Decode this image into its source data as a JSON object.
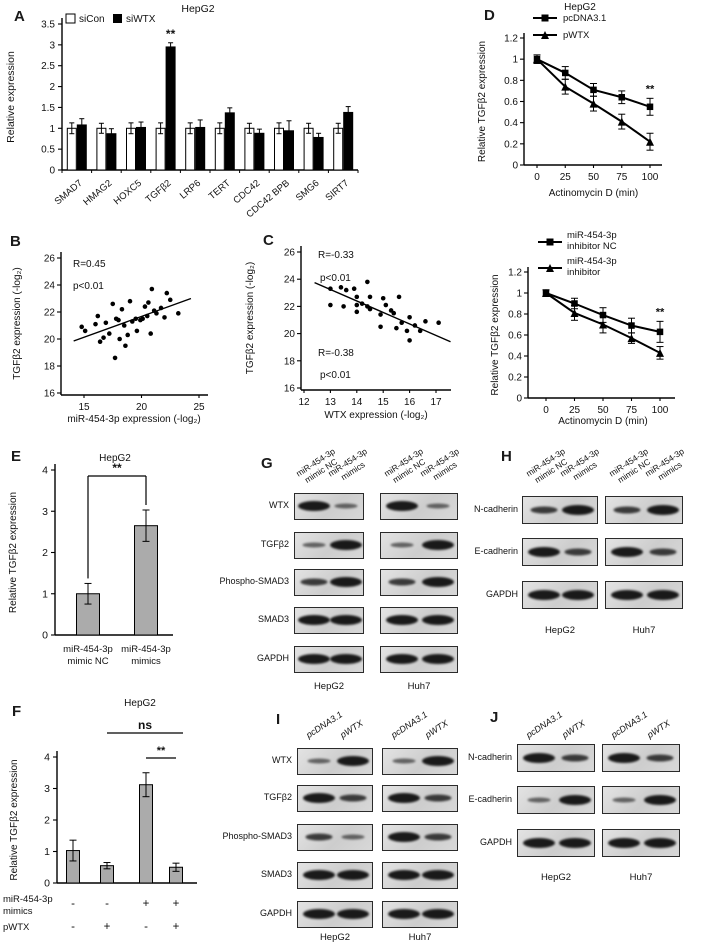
{
  "panels": {
    "a": {
      "letter": "A"
    },
    "b": {
      "letter": "B"
    },
    "c": {
      "letter": "C"
    },
    "d": {
      "letter": "D"
    },
    "e": {
      "letter": "E"
    },
    "f": {
      "letter": "F"
    },
    "g": {
      "letter": "G"
    },
    "h": {
      "letter": "H"
    },
    "i": {
      "letter": "I"
    },
    "j": {
      "letter": "J"
    }
  },
  "colors": {
    "bar_gray": "#ababab",
    "black": "#000000",
    "white": "#ffffff"
  },
  "chart_data": [
    {
      "id": "panel-a",
      "type": "grouped_bar",
      "title": "HepG2",
      "ylabel": "Relative expression",
      "ylim": [
        0,
        3.5
      ],
      "yticks": [
        0,
        0.5,
        1,
        1.5,
        2,
        2.5,
        3,
        3.5
      ],
      "categories": [
        "SMAD7",
        "HMAG2",
        "HOXC5",
        "TGFβ2",
        "LRP6",
        "TERT",
        "CDC42",
        "CDC42 BPB",
        "SMG6",
        "SIRT7"
      ],
      "series": [
        {
          "name": "siCon",
          "fill": "#ffffff",
          "values": [
            1.0,
            1.0,
            1.0,
            1.0,
            1.0,
            1.0,
            1.0,
            1.0,
            1.0,
            1.0
          ],
          "errors": [
            0.13,
            0.12,
            0.13,
            0.13,
            0.13,
            0.13,
            0.12,
            0.13,
            0.12,
            0.12
          ]
        },
        {
          "name": "siWTX",
          "fill": "#000000",
          "values": [
            1.08,
            0.87,
            1.02,
            2.95,
            1.02,
            1.37,
            0.88,
            0.94,
            0.78,
            1.38
          ],
          "errors": [
            0.15,
            0.12,
            0.13,
            0.1,
            0.18,
            0.12,
            0.1,
            0.24,
            0.1,
            0.14
          ]
        }
      ],
      "sig": [
        {
          "series": 1,
          "category": 3,
          "text": "**"
        }
      ]
    },
    {
      "id": "panel-d",
      "type": "line",
      "title": "HepG2",
      "xlabel": "Actinomycin D (min)",
      "ylabel": "Relative TGFβ2 expression",
      "ylim": [
        0,
        1.2
      ],
      "yticks": [
        0,
        0.2,
        0.4,
        0.6,
        0.8,
        1,
        1.2
      ],
      "x": [
        0,
        25,
        50,
        75,
        100
      ],
      "series": [
        {
          "name": [
            "pcDNA3.1"
          ],
          "marker": "square",
          "values": [
            1.0,
            0.87,
            0.71,
            0.64,
            0.55
          ],
          "errors": [
            0.04,
            0.06,
            0.06,
            0.06,
            0.08
          ]
        },
        {
          "name": [
            "pWTX"
          ],
          "marker": "triangle",
          "values": [
            1.0,
            0.74,
            0.58,
            0.41,
            0.22
          ],
          "errors": [
            0.04,
            0.07,
            0.07,
            0.07,
            0.08
          ]
        }
      ],
      "sig": {
        "series": 0,
        "text": "**"
      }
    },
    {
      "id": "panel-b",
      "type": "scatter",
      "xlabel": "miR-454-3p expression (-log₂)",
      "ylabel": "TGFβ2 expression (-log₂)",
      "xscale": [
        15,
        25
      ],
      "xticks": [
        15,
        20,
        25
      ],
      "yscale": [
        16,
        26
      ],
      "yticks": [
        16,
        18,
        20,
        22,
        24,
        26
      ],
      "annotations": [
        "R=0.45",
        "p<0.01"
      ],
      "trend": [
        [
          14.1,
          19.85
        ],
        [
          24.3,
          23.0
        ]
      ],
      "points": [
        [
          14.8,
          20.9
        ],
        [
          15.1,
          20.6
        ],
        [
          16.0,
          21.1
        ],
        [
          16.2,
          21.7
        ],
        [
          16.4,
          19.8
        ],
        [
          16.7,
          20.1
        ],
        [
          16.9,
          21.2
        ],
        [
          17.2,
          20.4
        ],
        [
          17.5,
          22.6
        ],
        [
          17.7,
          18.6
        ],
        [
          17.8,
          21.5
        ],
        [
          18.0,
          21.4
        ],
        [
          18.1,
          20.0
        ],
        [
          18.3,
          22.2
        ],
        [
          18.5,
          21.0
        ],
        [
          18.6,
          19.5
        ],
        [
          18.8,
          20.3
        ],
        [
          19.0,
          22.8
        ],
        [
          19.2,
          21.3
        ],
        [
          19.5,
          21.5
        ],
        [
          19.6,
          20.6
        ],
        [
          19.9,
          21.4
        ],
        [
          20.1,
          21.5
        ],
        [
          20.3,
          22.4
        ],
        [
          20.5,
          21.7
        ],
        [
          20.6,
          22.7
        ],
        [
          20.8,
          20.4
        ],
        [
          20.9,
          23.7
        ],
        [
          21.1,
          22.1
        ],
        [
          21.3,
          21.9
        ],
        [
          21.7,
          22.3
        ],
        [
          22.0,
          21.6
        ],
        [
          22.2,
          23.4
        ],
        [
          22.5,
          22.9
        ],
        [
          23.2,
          21.9
        ]
      ]
    },
    {
      "id": "panel-c",
      "type": "scatter",
      "xlabel": "WTX expression (-log₂)",
      "ylabel": "TGFβ2 expression (-log₂)",
      "xscale": [
        12,
        17
      ],
      "xticks": [
        12,
        13,
        14,
        15,
        16,
        17
      ],
      "yscale": [
        16,
        26
      ],
      "yticks": [
        16,
        18,
        20,
        22,
        24,
        26
      ],
      "annotations": [
        "R=-0.33",
        "p<0.01",
        "R=-0.38",
        "p<0.01"
      ],
      "trend": [
        [
          12.4,
          23.75
        ],
        [
          17.55,
          19.4
        ]
      ],
      "points": [
        [
          13.0,
          23.3
        ],
        [
          13.0,
          22.1
        ],
        [
          13.4,
          23.4
        ],
        [
          13.5,
          22.0
        ],
        [
          13.6,
          23.2
        ],
        [
          13.9,
          23.3
        ],
        [
          14.0,
          22.7
        ],
        [
          14.0,
          22.1
        ],
        [
          14.0,
          21.6
        ],
        [
          14.2,
          22.2
        ],
        [
          14.4,
          23.8
        ],
        [
          14.4,
          22.0
        ],
        [
          14.5,
          22.7
        ],
        [
          14.5,
          21.8
        ],
        [
          14.9,
          21.4
        ],
        [
          14.9,
          20.5
        ],
        [
          15.0,
          22.6
        ],
        [
          15.1,
          22.1
        ],
        [
          15.3,
          21.7
        ],
        [
          15.4,
          21.5
        ],
        [
          15.5,
          20.4
        ],
        [
          15.6,
          22.7
        ],
        [
          15.7,
          20.8
        ],
        [
          15.9,
          20.2
        ],
        [
          16.0,
          19.5
        ],
        [
          16.0,
          21.2
        ],
        [
          16.2,
          20.6
        ],
        [
          16.4,
          20.2
        ],
        [
          16.6,
          20.9
        ],
        [
          17.1,
          20.8
        ]
      ]
    },
    {
      "id": "panel-c2",
      "type": "line",
      "title": "",
      "xlabel": "Actinomycin D (min)",
      "ylabel": "Relative TGFβ2 expression",
      "ylim": [
        0,
        1.2
      ],
      "yticks": [
        0,
        0.2,
        0.4,
        0.6,
        0.8,
        1,
        1.2
      ],
      "x": [
        0,
        25,
        50,
        75,
        100
      ],
      "series": [
        {
          "name": [
            "miR-454-3p",
            "inhibitor NC"
          ],
          "marker": "square",
          "values": [
            1.0,
            0.9,
            0.79,
            0.69,
            0.63
          ],
          "errors": [
            0.03,
            0.05,
            0.07,
            0.07,
            0.1
          ]
        },
        {
          "name": [
            "miR-454-3p",
            "inhibitor"
          ],
          "marker": "triangle",
          "values": [
            1.0,
            0.81,
            0.7,
            0.57,
            0.43
          ],
          "errors": [
            0.03,
            0.07,
            0.08,
            0.05,
            0.06
          ]
        }
      ],
      "sig": {
        "series": 0,
        "text": "**"
      }
    },
    {
      "id": "panel-e",
      "type": "bar",
      "title": "HepG2",
      "ylabel": "Relative TGFβ2 expression",
      "ylim": [
        0,
        4
      ],
      "yticks": [
        0,
        1,
        2,
        3,
        4
      ],
      "categories": [
        [
          "miR-454-3p",
          "mimic NC"
        ],
        [
          "miR-454-3p",
          "mimics"
        ]
      ],
      "values": [
        1.0,
        2.65
      ],
      "errors": [
        0.25,
        0.38
      ],
      "bar_fill": "#ababab",
      "sig": [
        {
          "kind": "bracket",
          "from": 0,
          "to": 1,
          "text": "**"
        }
      ]
    },
    {
      "id": "panel-f",
      "type": "bar",
      "title": "HepG2",
      "ylabel": "Relative TGFβ2 expression",
      "ylim": [
        0,
        4
      ],
      "yticks": [
        0,
        1,
        2,
        3,
        4
      ],
      "values": [
        1.03,
        0.55,
        3.12,
        0.5
      ],
      "errors": [
        0.33,
        0.1,
        0.38,
        0.13
      ],
      "bar_fill": "#ababab",
      "sig": [
        {
          "kind": "topline",
          "from": 1,
          "to": 3,
          "text": "ns",
          "level": 1
        },
        {
          "kind": "topline",
          "from": 2,
          "to": 3,
          "text": "**",
          "level": 0
        }
      ],
      "xrows": [
        {
          "label": [
            "miR-454-3p",
            "mimics"
          ],
          "values": [
            "-",
            "-",
            "+",
            "+"
          ]
        },
        {
          "label": [
            "pWTX"
          ],
          "values": [
            "-",
            "+",
            "-",
            "+"
          ]
        }
      ]
    }
  ],
  "blots": [
    {
      "id": "panel-g",
      "italic_headers": false,
      "lane_headers": [
        [
          "miR-454-3p",
          "mimic NC"
        ],
        [
          "miR-454-3p",
          "mimics"
        ],
        [
          "miR-454-3p",
          "mimic NC"
        ],
        [
          "miR-454-3p",
          "mimics"
        ]
      ],
      "rows": [
        {
          "label": "WTX",
          "groups": [
            [
              "strong",
              "weak"
            ],
            [
              "strong",
              "weak"
            ]
          ]
        },
        {
          "label": "TGFβ2",
          "groups": [
            [
              "weak",
              "strong"
            ],
            [
              "weak",
              "strong"
            ]
          ]
        },
        {
          "label": "Phospho-SMAD3",
          "groups": [
            [
              "medium",
              "strong"
            ],
            [
              "medium",
              "strong"
            ]
          ]
        },
        {
          "label": "SMAD3",
          "groups": [
            [
              "strong",
              "strong"
            ],
            [
              "strong",
              "strong"
            ]
          ]
        },
        {
          "label": "GAPDH",
          "groups": [
            [
              "strong",
              "strong"
            ],
            [
              "strong",
              "strong"
            ]
          ]
        }
      ],
      "group_labels": [
        "HepG2",
        "Huh7"
      ]
    },
    {
      "id": "panel-h",
      "italic_headers": false,
      "lane_headers": [
        [
          "miR-454-3p",
          "mimic NC"
        ],
        [
          "miR-454-3p",
          "mimics"
        ],
        [
          "miR-454-3p",
          "mimic NC"
        ],
        [
          "miR-454-3p",
          "mimics"
        ]
      ],
      "rows": [
        {
          "label": "N-cadherin",
          "groups": [
            [
              "medium",
              "strong"
            ],
            [
              "medium",
              "strong"
            ]
          ]
        },
        {
          "label": "E-cadherin",
          "groups": [
            [
              "strong",
              "medium"
            ],
            [
              "strong",
              "medium"
            ]
          ]
        },
        {
          "label": "GAPDH",
          "groups": [
            [
              "strong",
              "strong"
            ],
            [
              "strong",
              "strong"
            ]
          ]
        }
      ],
      "group_labels": [
        "HepG2",
        "Huh7"
      ]
    },
    {
      "id": "panel-i",
      "italic_headers": true,
      "lane_headers": [
        [
          "pcDNA3.1"
        ],
        [
          "pWTX"
        ],
        [
          "pcDNA3.1"
        ],
        [
          "pWTX"
        ]
      ],
      "rows": [
        {
          "label": "WTX",
          "groups": [
            [
              "weak",
              "strong"
            ],
            [
              "weak",
              "strong"
            ]
          ]
        },
        {
          "label": "TGFβ2",
          "groups": [
            [
              "strong",
              "medium"
            ],
            [
              "strong",
              "medium"
            ]
          ]
        },
        {
          "label": "Phospho-SMAD3",
          "groups": [
            [
              "medium",
              "weak"
            ],
            [
              "strong",
              "medium"
            ]
          ]
        },
        {
          "label": "SMAD3",
          "groups": [
            [
              "strong",
              "strong"
            ],
            [
              "strong",
              "strong"
            ]
          ]
        },
        {
          "label": "GAPDH",
          "groups": [
            [
              "strong",
              "strong"
            ],
            [
              "strong",
              "strong"
            ]
          ]
        }
      ],
      "group_labels": [
        "HepG2",
        "Huh7"
      ]
    },
    {
      "id": "panel-j",
      "italic_headers": true,
      "lane_headers": [
        [
          "pcDNA3.1"
        ],
        [
          "pWTX"
        ],
        [
          "pcDNA3.1"
        ],
        [
          "pWTX"
        ]
      ],
      "rows": [
        {
          "label": "N-cadherin",
          "groups": [
            [
              "strong",
              "medium"
            ],
            [
              "strong",
              "medium"
            ]
          ]
        },
        {
          "label": "E-cadherin",
          "groups": [
            [
              "weak",
              "strong"
            ],
            [
              "weak",
              "strong"
            ]
          ]
        },
        {
          "label": "GAPDH",
          "groups": [
            [
              "strong",
              "strong"
            ],
            [
              "strong",
              "strong"
            ]
          ]
        }
      ],
      "group_labels": [
        "HepG2",
        "Huh7"
      ]
    }
  ]
}
